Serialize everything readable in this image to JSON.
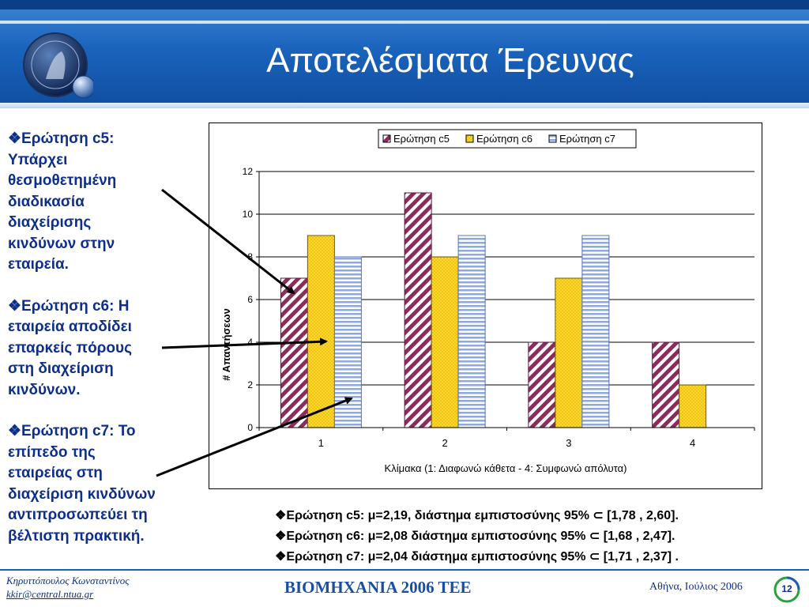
{
  "slide": {
    "title": "Αποτελέσματα Έρευνας"
  },
  "questions": [
    {
      "text": "❖Ερώτηση c5:\nΥπάρχει\nθεσμοθετημένη\nδιαδικασία\nδιαχείρισης\nκινδύνων στην\nεταιρεία."
    },
    {
      "text": "❖Ερώτηση c6: Η\nεταιρεία αποδίδει\nεπαρκείς πόρους\nστη διαχείριση\nκινδύνων."
    },
    {
      "text": "❖Ερώτηση c7: Το\nεπίπεδο της\nεταιρείας στη\nδιαχείριση κινδύνων\nαντιπροσωπεύει τη\nβέλτιστη πρακτική."
    }
  ],
  "stats": [
    "❖Ερώτηση c5: μ=2,19, διάστημα εμπιστοσύνης 95% ⊂ [1,78 , 2,60].",
    "❖Ερώτηση c6: μ=2,08 διάστημα εμπιστοσύνης 95% ⊂ [1,68 , 2,47].",
    "❖Ερώτηση c7: μ=2,04 διάστημα εμπιστοσύνης 95% ⊂ [1,71 , 2,37] ."
  ],
  "chart_data": {
    "type": "bar",
    "categories": [
      "1",
      "2",
      "3",
      "4"
    ],
    "series": [
      {
        "name": "Ερώτηση c5",
        "values": [
          7,
          11,
          4,
          4
        ],
        "color": "#8b2c5c",
        "pattern": "diagonal-stripes"
      },
      {
        "name": "Ερώτηση c6",
        "values": [
          9,
          8,
          7,
          2
        ],
        "color": "#f5c400",
        "pattern": "dots"
      },
      {
        "name": "Ερώτηση c7",
        "values": [
          8,
          9,
          9,
          0
        ],
        "color": "#8ea8e0",
        "pattern": "horizontal-stripes"
      }
    ],
    "xlabel": "Κλίμακα (1: Διαφωνώ κάθετα - 4: Συμφωνώ απόλυτα)",
    "ylabel": "# Απαντήσεων",
    "ylim": [
      0,
      12
    ],
    "yticks": [
      "0",
      "2",
      "4",
      "6",
      "8",
      "10",
      "12"
    ],
    "grid": true,
    "legend_position": "top"
  },
  "footer": {
    "author": "Κηρυττόπουλος  Κωνσταντίνος",
    "email": "kkir@central.ntua.gr",
    "center": "ΒΙΟΜΗΧΑΝΙΑ 2006 ΤΕΕ",
    "place_date": "Αθήνα, Ιούλιος 2006",
    "page": "12"
  }
}
